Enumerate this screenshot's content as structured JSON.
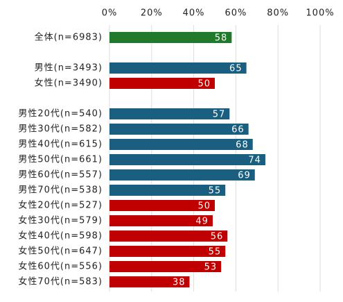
{
  "chart_data": {
    "type": "hbar",
    "categories": [
      "全体(n=6983)",
      null,
      "男性(n=3493)",
      "女性(n=3490)",
      null,
      "男性20代(n=540)",
      "男性30代(n=582)",
      "男性40代(n=615)",
      "男性50代(n=661)",
      "男性60代(n=557)",
      "男性70代(n=538)",
      "女性20代(n=527)",
      "女性30代(n=579)",
      "女性40代(n=598)",
      "女性50代(n=647)",
      "女性60代(n=556)",
      "女性70代(n=583)"
    ],
    "values": [
      58,
      null,
      65,
      50,
      null,
      57,
      66,
      68,
      74,
      69,
      55,
      50,
      49,
      56,
      55,
      53,
      38
    ],
    "colors": [
      "#217a2b",
      null,
      "#1b5f80",
      "#c00000",
      null,
      "#1b5f80",
      "#1b5f80",
      "#1b5f80",
      "#1b5f80",
      "#1b5f80",
      "#1b5f80",
      "#c00000",
      "#c00000",
      "#c00000",
      "#c00000",
      "#c00000",
      "#c00000"
    ],
    "xlim": [
      0,
      100
    ],
    "xticks": [
      {
        "value": 0,
        "label": "0%"
      },
      {
        "value": 20,
        "label": "20%"
      },
      {
        "value": 40,
        "label": "40%"
      },
      {
        "value": 60,
        "label": "60%"
      },
      {
        "value": 80,
        "label": "80%"
      },
      {
        "value": 100,
        "label": "100%"
      }
    ],
    "grid": true
  }
}
